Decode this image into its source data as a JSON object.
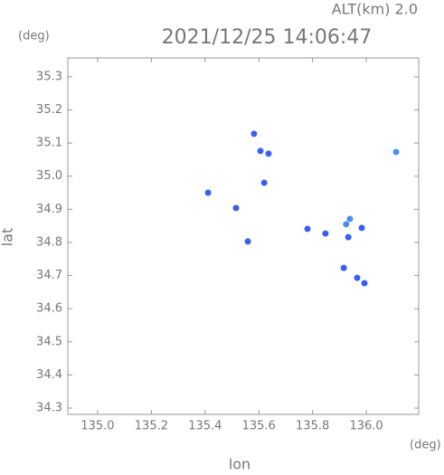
{
  "chart_data": {
    "type": "scatter",
    "title": "2021/12/25 14:06:47",
    "annotation": "ALT(km) 2.0",
    "x_unit": "(deg)",
    "y_unit": "(deg)",
    "xlabel": "lon",
    "ylabel": "lat",
    "xlim": [
      134.889,
      136.195
    ],
    "ylim": [
      34.281,
      35.357
    ],
    "xticks": [
      {
        "value": 135.0,
        "label": "135.0"
      },
      135.2,
      135.4,
      135.6,
      135.8,
      {
        "value": 136.0,
        "label": "136.0"
      }
    ],
    "yticks": [
      34.3,
      34.4,
      34.5,
      34.6,
      34.7,
      34.8,
      34.9,
      {
        "value": 35.0,
        "label": "35.0"
      },
      35.1,
      35.2,
      35.3
    ],
    "series": [
      {
        "color": "#3a5ef2",
        "x": [
          135.582,
          135.606,
          135.636,
          135.62,
          135.411,
          135.515,
          135.559,
          135.781,
          135.848,
          135.933,
          135.983,
          135.916,
          135.966,
          135.993
        ],
        "values": [
          35.128,
          35.076,
          35.068,
          34.98,
          34.95,
          34.904,
          34.803,
          34.841,
          34.827,
          34.816,
          34.844,
          34.723,
          34.693,
          34.677
        ]
      },
      {
        "color": "#4a8ef0",
        "x": [
          136.111,
          135.939,
          135.925
        ],
        "values": [
          35.073,
          34.871,
          34.855
        ]
      }
    ]
  }
}
